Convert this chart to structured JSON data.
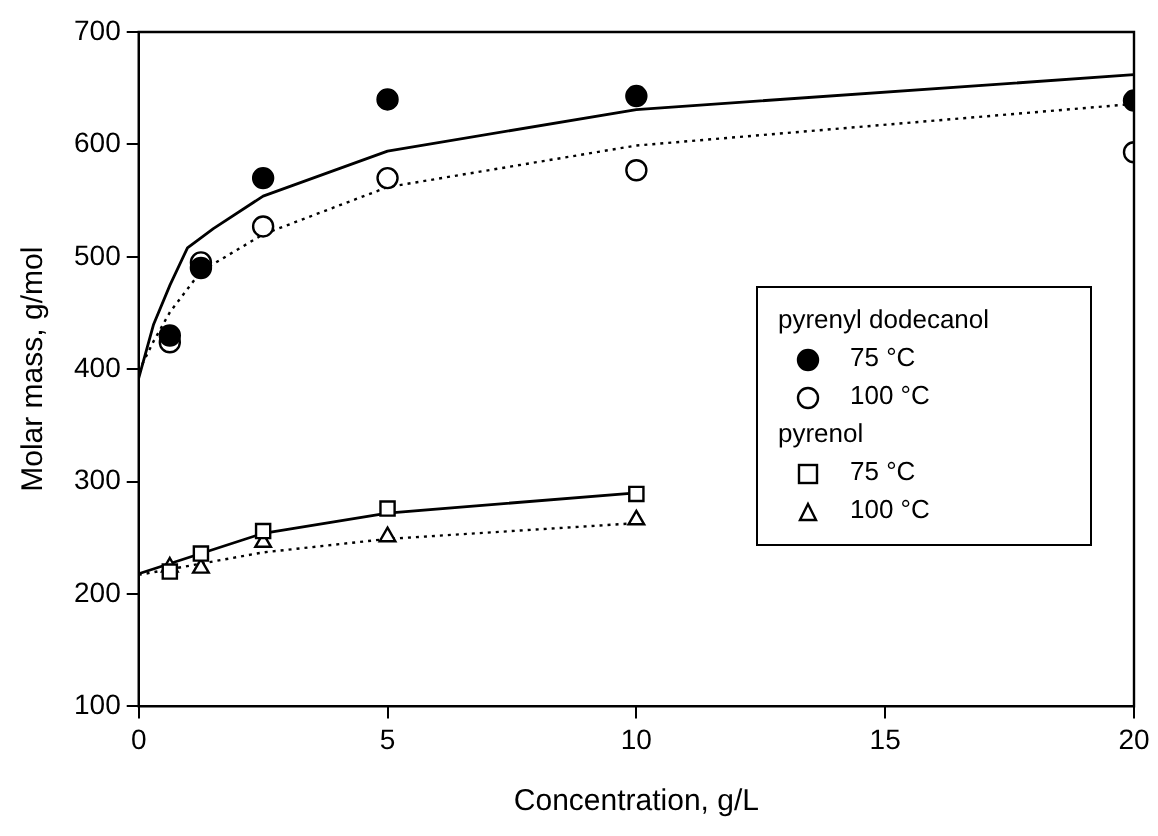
{
  "chart_data": {
    "type": "scatter",
    "xlabel": "Concentration, g/L",
    "ylabel": "Molar mass, g/mol",
    "xlim": [
      0,
      20
    ],
    "xticks": [
      0,
      5,
      10,
      15,
      20
    ],
    "ylim": [
      100,
      700
    ],
    "yticks": [
      100,
      200,
      300,
      400,
      500,
      600,
      700
    ],
    "legend": "right",
    "annotations": [
      "pyrenyl dodecanol",
      "pyrenol"
    ],
    "series": [
      {
        "name": "75 °C",
        "marker": "circle",
        "color": "#000000",
        "x": [
          0.625,
          1.25,
          2.5,
          5,
          10,
          20
        ],
        "values": [
          430,
          490,
          570,
          640,
          643,
          639
        ]
      },
      {
        "name": "100 °C",
        "marker": "circle",
        "color": "#ffffff",
        "x": [
          0.625,
          1.25,
          2.5,
          5,
          10,
          20
        ],
        "values": [
          424,
          495,
          527,
          570,
          577,
          593
        ]
      },
      {
        "name": "75 °C",
        "marker": "square",
        "color": "#ffffff",
        "x": [
          0.625,
          1.25,
          2.5,
          5,
          10
        ],
        "values": [
          220,
          236,
          256,
          276,
          289
        ]
      },
      {
        "name": "100 °C",
        "marker": "triangle",
        "color": "#ffffff",
        "x": [
          0.625,
          1.25,
          2.5,
          5,
          10
        ],
        "values": [
          224,
          223,
          246,
          251,
          266
        ]
      },
      {
        "type": "line",
        "marker": "none",
        "line_style": "solid",
        "color": "#000000",
        "x": [
          0,
          0.3,
          0.63,
          0.98,
          1.5,
          2.5,
          5,
          10,
          20
        ],
        "values": [
          392,
          440,
          475,
          508,
          525,
          554,
          594,
          631,
          662
        ]
      },
      {
        "type": "line",
        "marker": "none",
        "line_style": "dotted",
        "color": "#000000",
        "x": [
          0,
          0.3,
          0.63,
          1.25,
          2.5,
          5,
          10,
          20
        ],
        "values": [
          398,
          425,
          451,
          487,
          520,
          562,
          599,
          636
        ]
      },
      {
        "type": "line",
        "marker": "none",
        "line_style": "solid",
        "color": "#000000",
        "x": [
          0,
          1.25,
          2.5,
          5,
          10
        ],
        "values": [
          218,
          236,
          254,
          272,
          290
        ]
      },
      {
        "type": "line",
        "marker": "none",
        "line_style": "dotted",
        "color": "#000000",
        "x": [
          0,
          2.5,
          5,
          10
        ],
        "values": [
          217,
          237,
          249,
          263
        ]
      }
    ]
  }
}
